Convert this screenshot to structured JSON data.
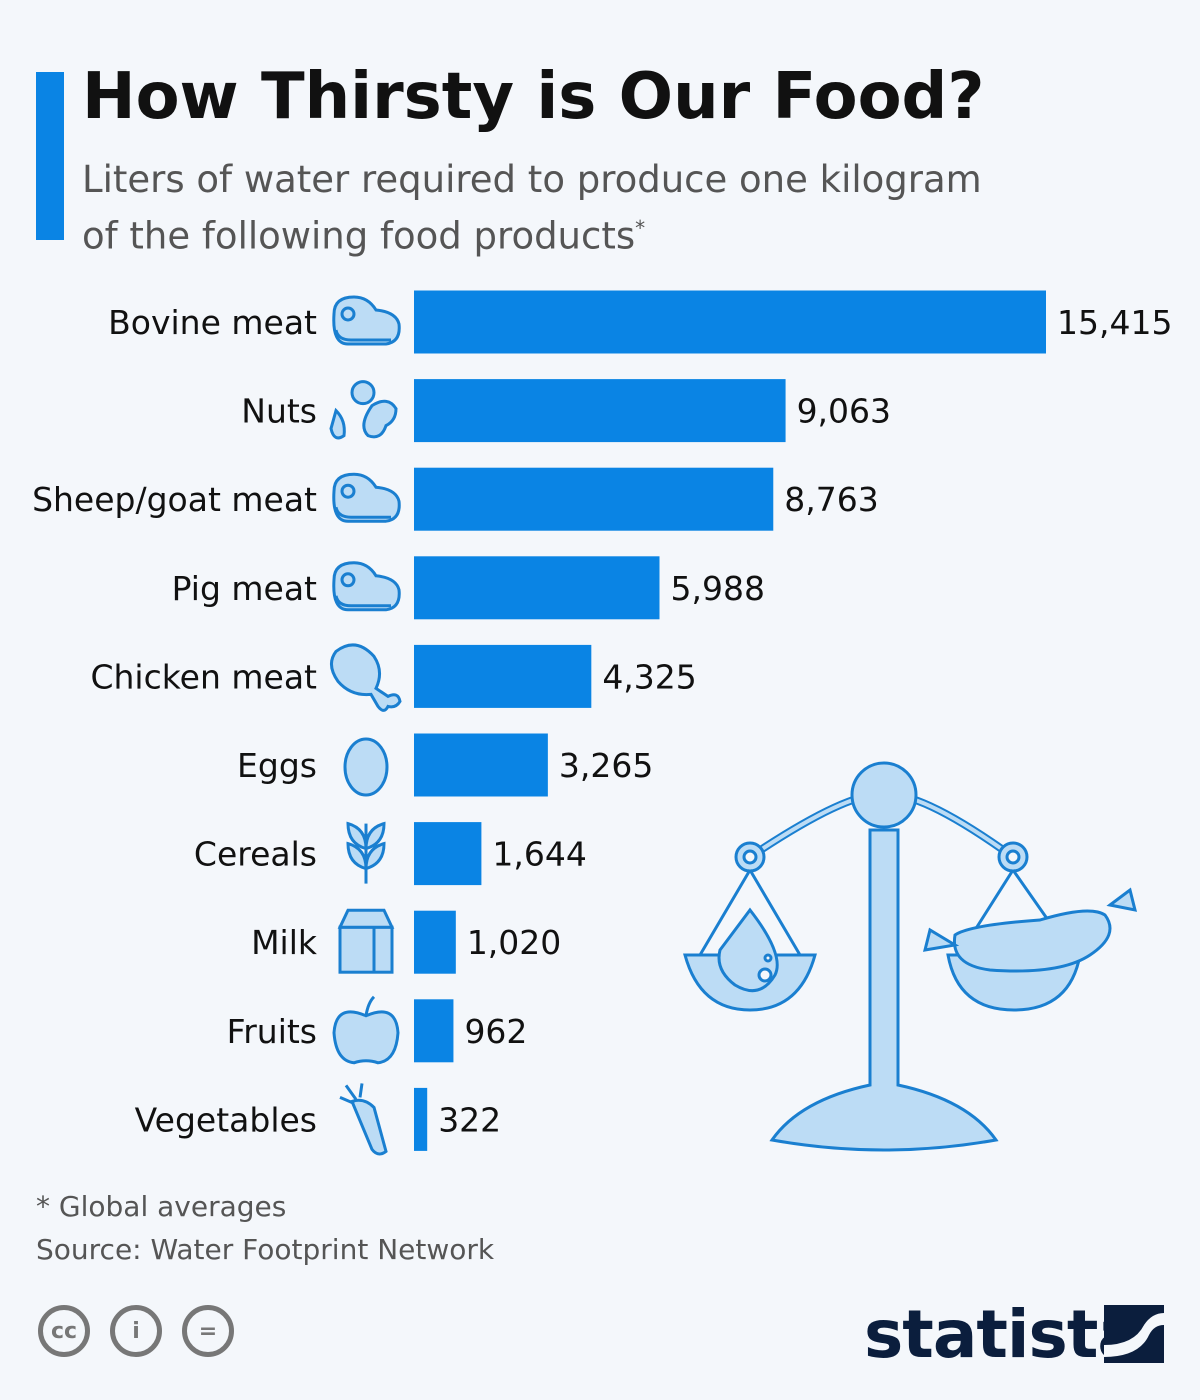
{
  "title": "How Thirsty is Our Food?",
  "subtitle_line1": "Liters of water required to produce one kilogram",
  "subtitle_line2": "of the following food products",
  "subtitle_marker": "*",
  "footnote": "* Global averages",
  "source": "Source: Water Footprint Network",
  "license_icons": [
    "cc-icon",
    "attribution-icon",
    "no-derivatives-icon"
  ],
  "license_labels": {
    "cc": "cc",
    "by": "i",
    "nd": "="
  },
  "brand": "statista",
  "colors": {
    "bar": "#0a84e4",
    "icon_stroke": "#1a7fd0",
    "icon_fill": "#bcdcf5",
    "background": "#f4f7fb"
  },
  "chart_data": {
    "type": "bar",
    "orientation": "horizontal",
    "categories": [
      "Bovine meat",
      "Nuts",
      "Sheep/goat meat",
      "Pig meat",
      "Chicken meat",
      "Eggs",
      "Cereals",
      "Milk",
      "Fruits",
      "Vegetables"
    ],
    "values": [
      15415,
      9063,
      8763,
      5988,
      4325,
      3265,
      1644,
      1020,
      962,
      322
    ],
    "labels": [
      "15,415",
      "9,063",
      "8,763",
      "5,988",
      "4,325",
      "3,265",
      "1,644",
      "1,020",
      "962",
      "322"
    ],
    "icons": [
      "meat-icon",
      "nuts-icon",
      "meat-icon",
      "meat-icon",
      "chicken-leg-icon",
      "egg-icon",
      "wheat-icon",
      "milk-carton-icon",
      "apple-icon",
      "carrot-icon"
    ],
    "xlim": [
      0,
      15415
    ],
    "grid": false,
    "axis_visible": false
  }
}
